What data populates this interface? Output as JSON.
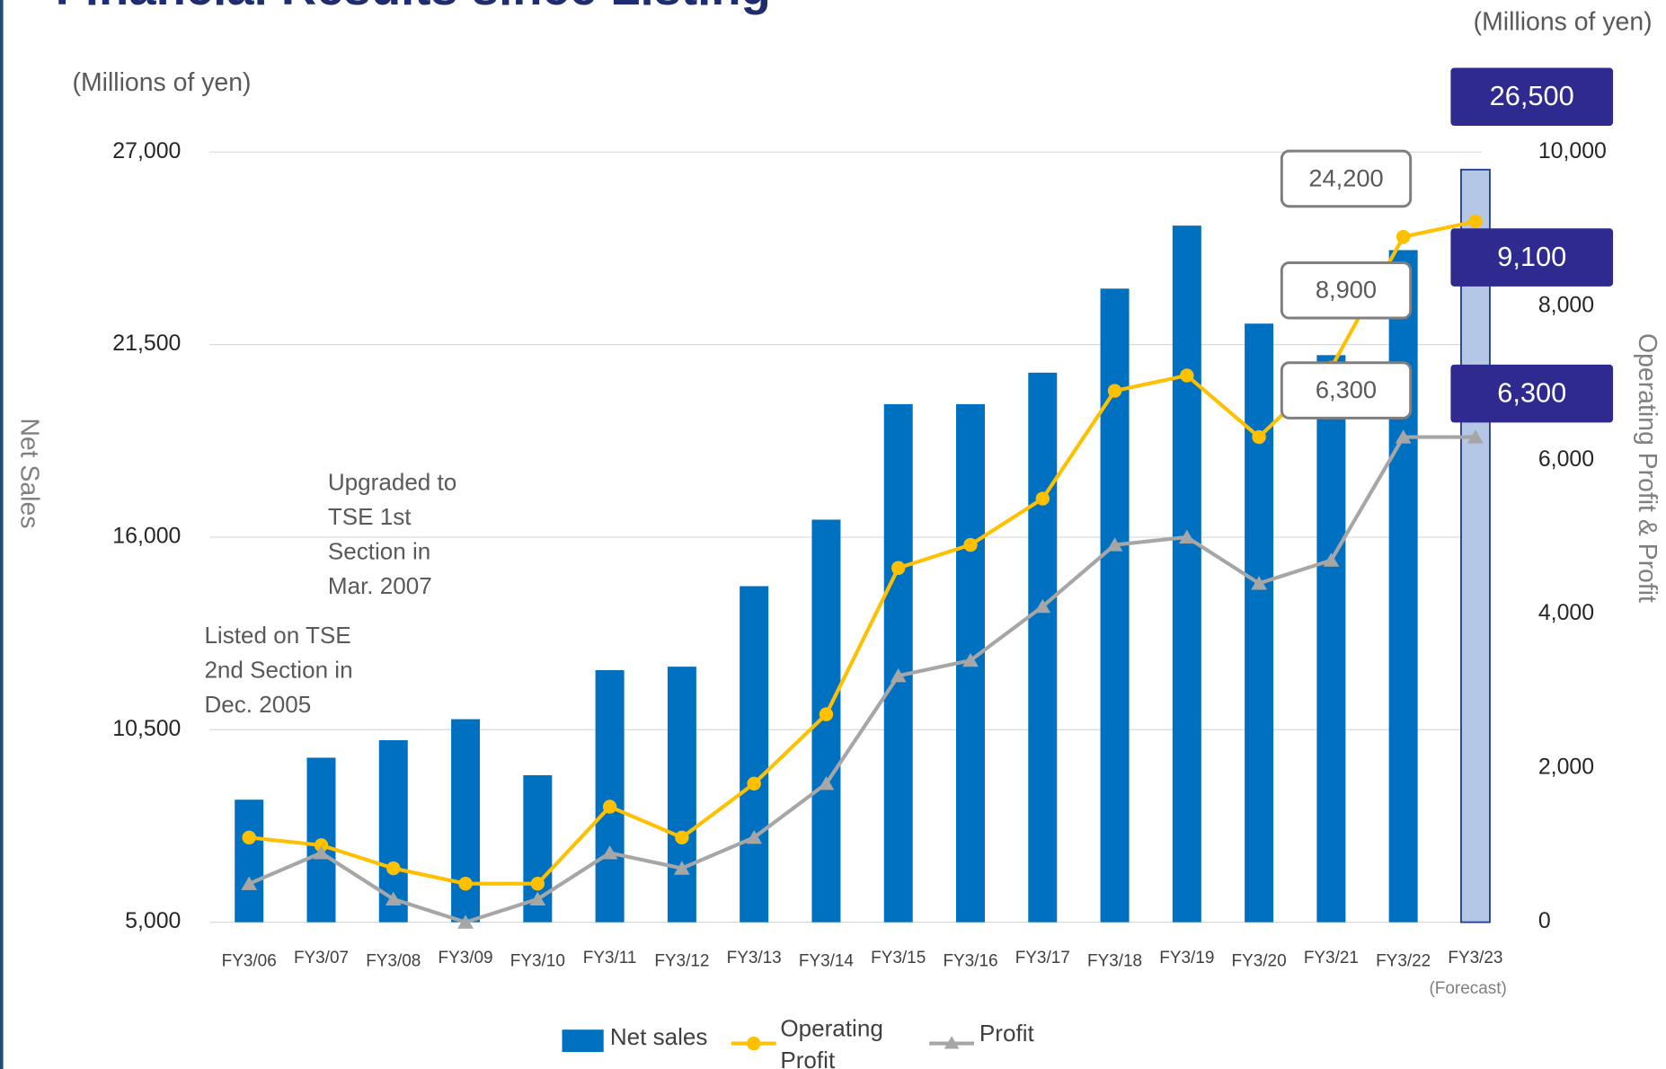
{
  "chart_data": {
    "type": "bar_line",
    "title": "Financial Results since Listing",
    "unit_left": "(Millions of yen)",
    "unit_right": "(Millions of yen)",
    "y_label": "Net Sales",
    "y2_label": "Operating Profit & Profit",
    "categories": [
      "FY3/06",
      "FY3/07",
      "FY3/08",
      "FY3/09",
      "FY3/10",
      "FY3/11",
      "FY3/12",
      "FY3/13",
      "FY3/14",
      "FY3/15",
      "FY3/16",
      "FY3/17",
      "FY3/18",
      "FY3/19",
      "FY3/20",
      "FY3/21",
      "FY3/22",
      "FY3/23"
    ],
    "category_note": "(Forecast)",
    "ylim": [
      5000,
      27000
    ],
    "yticks": [
      {
        "value": 5000,
        "label": "5,000"
      },
      {
        "value": 10500,
        "label": "10,500"
      },
      {
        "value": 16000,
        "label": "16,000"
      },
      {
        "value": 21500,
        "label": "21,500"
      },
      {
        "value": 27000,
        "label": "27,000"
      }
    ],
    "y2lim": [
      0,
      10000
    ],
    "y2ticks": [
      0,
      {
        "value": 2000,
        "label": "2,000"
      },
      {
        "value": 4000,
        "label": "4,000"
      },
      {
        "value": 6000,
        "label": "6,000"
      },
      {
        "value": 8000,
        "label": "8,000"
      },
      {
        "value": 10000,
        "label": "10,000"
      }
    ],
    "grid": true,
    "series": [
      {
        "name": "Net sales",
        "kind": "bar",
        "color": "#0070c0",
        "colors": [
          "#0070c0",
          "#0070c0",
          "#0070c0",
          "#0070c0",
          "#0070c0",
          "#0070c0",
          "#0070c0",
          "#0070c0",
          "#0070c0",
          "#0070c0",
          "#0070c0",
          "#0070c0",
          "#0070c0",
          "#0070c0",
          "#0070c0",
          "#0070c0",
          "#0070c0",
          "#b4c7e7"
        ],
        "values": [
          8500,
          9700,
          10200,
          10800,
          9200,
          12200,
          12300,
          14600,
          16500,
          19800,
          19800,
          20700,
          23100,
          24900,
          22100,
          21200,
          24200,
          26500
        ],
        "value_labels": [
          null,
          null,
          null,
          null,
          null,
          null,
          null,
          null,
          null,
          null,
          null,
          null,
          null,
          null,
          null,
          null,
          "24,200",
          "26,500"
        ]
      },
      {
        "name": "Operating Profit",
        "kind": "line",
        "axis": "y2",
        "color": "#ffc000",
        "values": [
          1100,
          1000,
          700,
          500,
          500,
          1500,
          1100,
          1800,
          2700,
          4600,
          4900,
          5500,
          6900,
          7100,
          6300,
          7200,
          8900,
          9100
        ],
        "value_labels": [
          null,
          null,
          null,
          null,
          null,
          null,
          null,
          null,
          null,
          null,
          null,
          null,
          null,
          null,
          null,
          null,
          "8,900",
          "9,100"
        ]
      },
      {
        "name": "Profit",
        "kind": "line",
        "axis": "y2",
        "color": "#a6a6a6",
        "values": [
          500,
          900,
          300,
          0,
          300,
          900,
          700,
          1100,
          1800,
          3200,
          3400,
          4100,
          4900,
          5000,
          4400,
          4700,
          6300,
          6300
        ],
        "value_labels": [
          null,
          null,
          null,
          null,
          null,
          null,
          null,
          null,
          null,
          null,
          null,
          null,
          null,
          null,
          null,
          null,
          "6,300",
          "6,300"
        ]
      }
    ],
    "annotations": [
      {
        "lines": [
          "Upgraded to",
          "TSE 1st",
          "Section in",
          "Mar. 2007"
        ]
      },
      {
        "lines": [
          "Listed on TSE",
          "2nd Section in",
          "Dec. 2005"
        ]
      }
    ]
  }
}
